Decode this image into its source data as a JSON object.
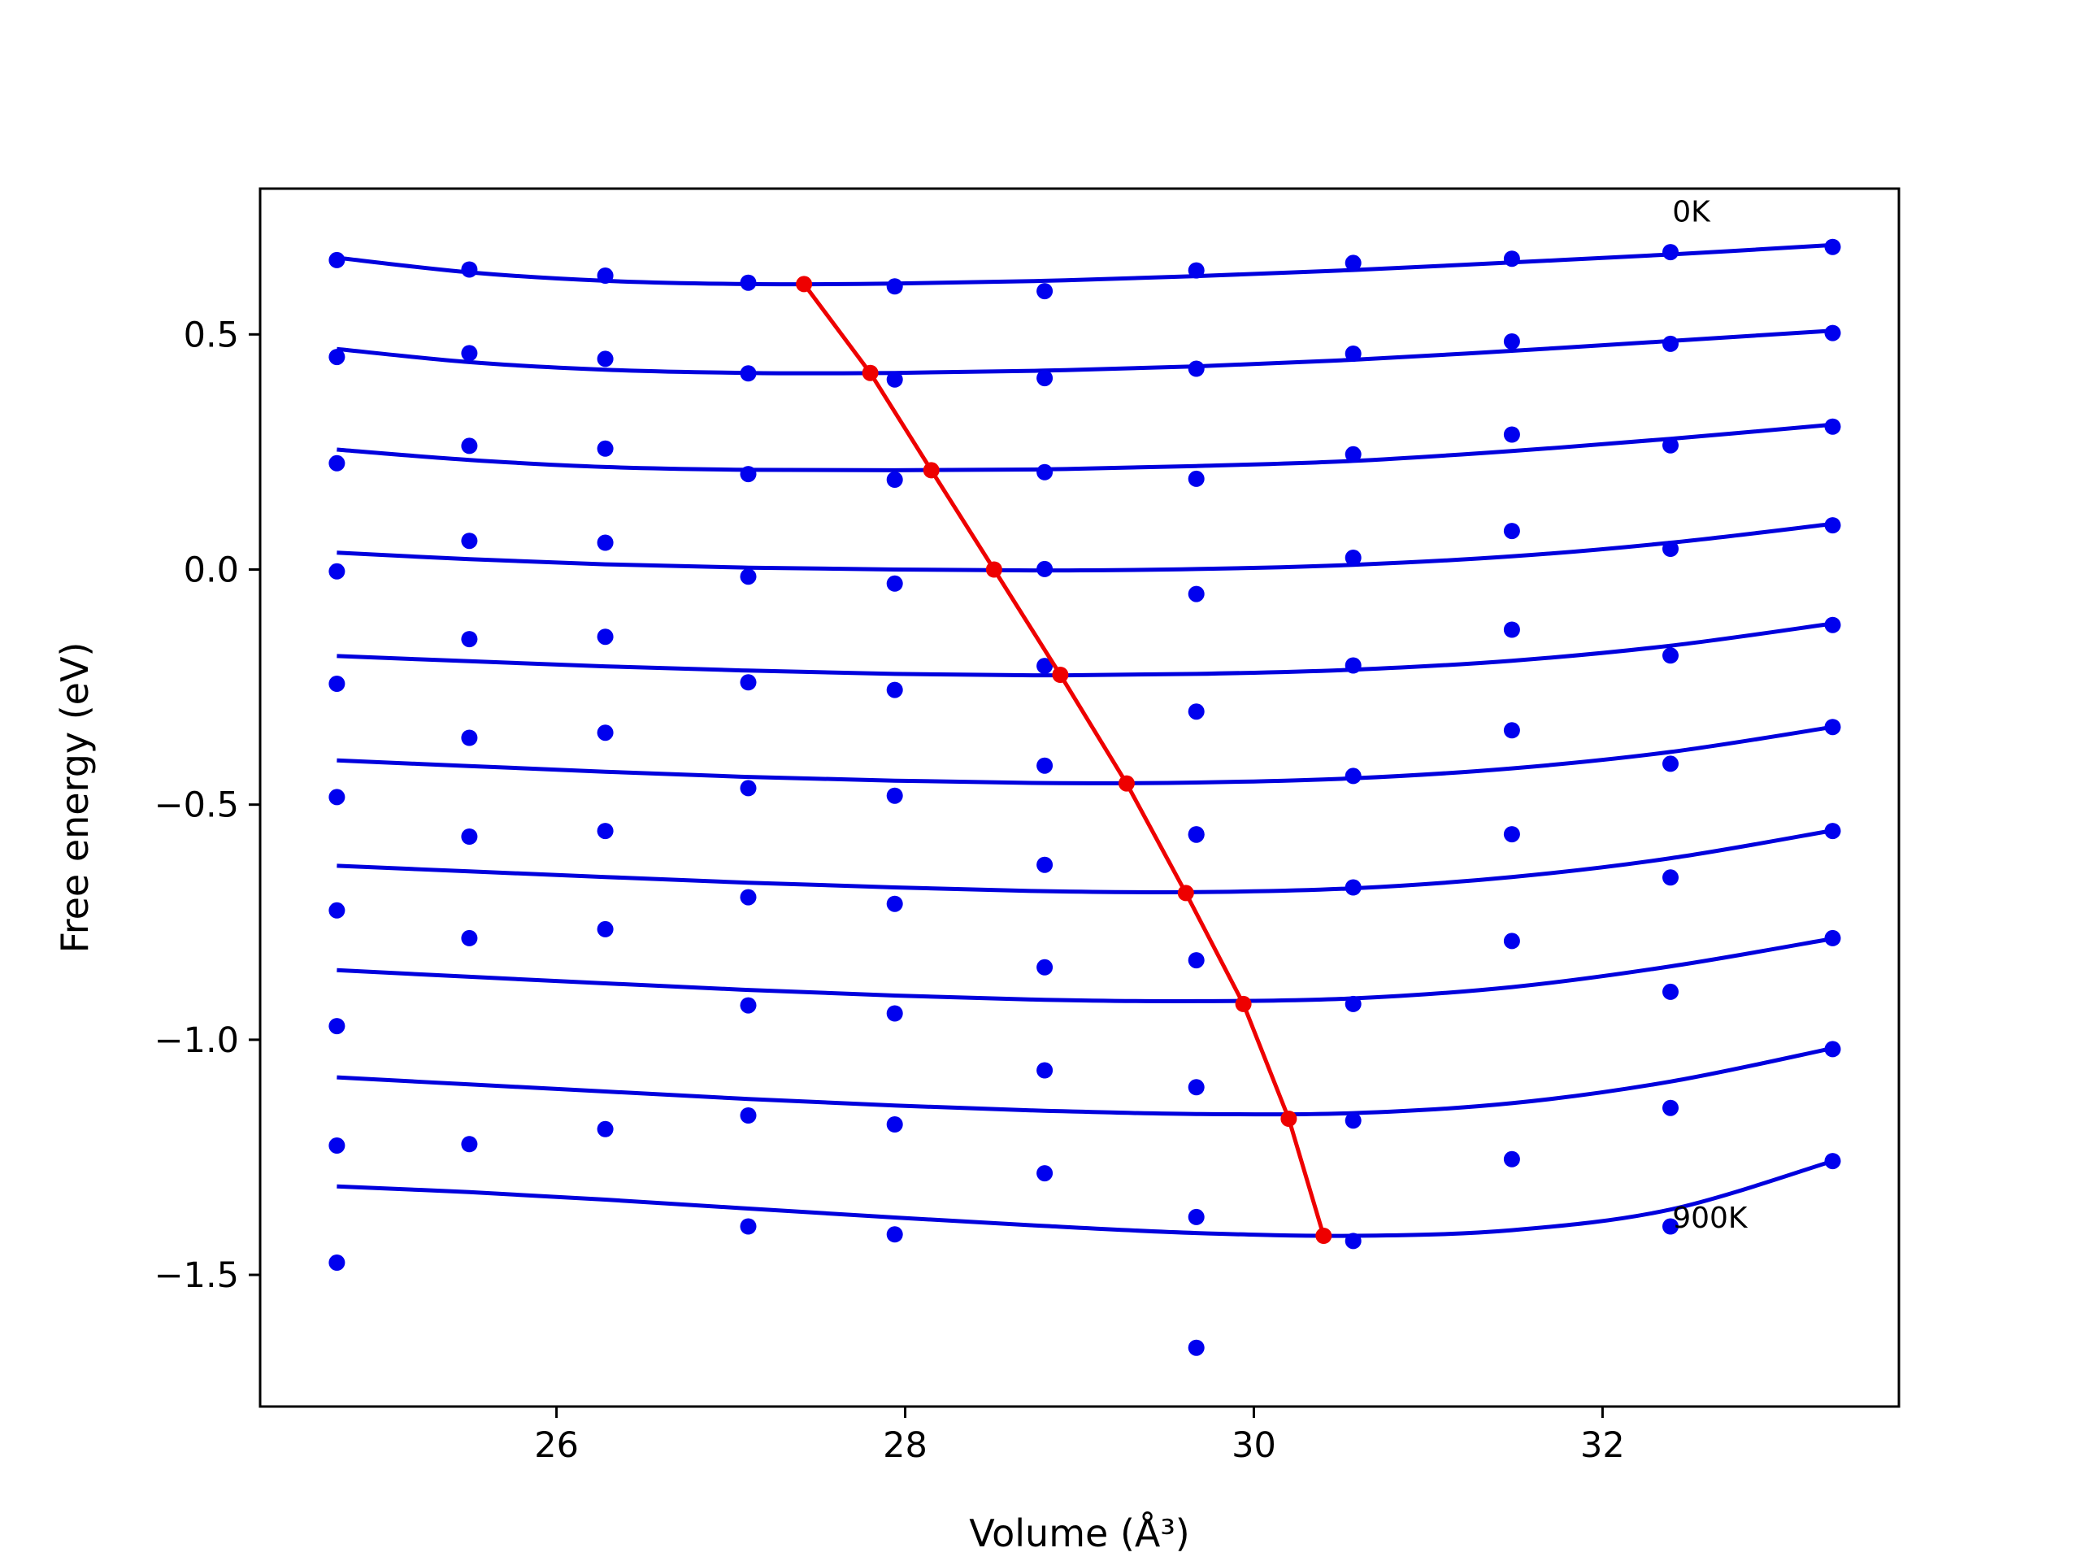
{
  "chart_data": {
    "type": "scatter",
    "xlabel": "Volume (Å³)",
    "ylabel": "Free energy (eV)",
    "xlim": [
      24.3,
      33.7
    ],
    "ylim": [
      -1.78,
      0.81
    ],
    "xticks": [
      26,
      28,
      30,
      32
    ],
    "yticks": [
      0.5,
      0.0,
      -0.5,
      -1.0,
      -1.5
    ],
    "xtick_labels": [
      "26",
      "28",
      "30",
      "32"
    ],
    "ytick_labels": [
      "0.5",
      "0.0",
      "−0.5",
      "−1.0",
      "−1.5"
    ],
    "annotations": [
      {
        "text": "0K",
        "x": 32.4,
        "y": 0.74
      },
      {
        "text": "900K",
        "x": 32.4,
        "y": -1.4
      }
    ],
    "grid": false,
    "colors": {
      "points": "#0000ee",
      "fit": "#0000dd",
      "minimum": "#ee0000"
    },
    "x": [
      24.74,
      25.5,
      26.28,
      27.1,
      27.94,
      28.8,
      29.67,
      30.57,
      31.48,
      32.39,
      33.32
    ],
    "series": [
      {
        "points": [
          0.658,
          0.638,
          0.625,
          0.61,
          0.602,
          0.592,
          0.636,
          0.652,
          0.661,
          0.675,
          0.686
        ],
        "fit": [
          0.663,
          0.632,
          0.614,
          0.607,
          0.608,
          0.614,
          0.624,
          0.637,
          0.653,
          0.67,
          0.69
        ]
      },
      {
        "points": [
          0.452,
          0.46,
          0.448,
          0.417,
          0.404,
          0.407,
          0.427,
          0.459,
          0.485,
          0.48,
          0.503
        ],
        "fit": [
          0.469,
          0.441,
          0.425,
          0.418,
          0.418,
          0.423,
          0.432,
          0.446,
          0.465,
          0.486,
          0.508
        ]
      },
      {
        "points": [
          0.226,
          0.263,
          0.257,
          0.203,
          0.191,
          0.207,
          0.193,
          0.245,
          0.287,
          0.264,
          0.304
        ],
        "fit": [
          0.255,
          0.233,
          0.218,
          0.212,
          0.211,
          0.213,
          0.22,
          0.231,
          0.252,
          0.278,
          0.308
        ]
      },
      {
        "points": [
          -0.004,
          0.061,
          0.057,
          -0.015,
          -0.03,
          0.001,
          -0.052,
          0.025,
          0.082,
          0.044,
          0.094
        ],
        "fit": [
          0.036,
          0.022,
          0.011,
          0.004,
          0.0,
          -0.002,
          0.001,
          0.01,
          0.028,
          0.057,
          0.097
        ]
      },
      {
        "points": [
          -0.243,
          -0.148,
          -0.143,
          -0.24,
          -0.256,
          -0.205,
          -0.302,
          -0.204,
          -0.128,
          -0.183,
          -0.118
        ],
        "fit": [
          -0.184,
          -0.195,
          -0.206,
          -0.215,
          -0.222,
          -0.225,
          -0.222,
          -0.213,
          -0.194,
          -0.162,
          -0.115
        ]
      },
      {
        "points": [
          -0.484,
          -0.358,
          -0.347,
          -0.465,
          -0.481,
          -0.417,
          -0.563,
          -0.439,
          -0.342,
          -0.413,
          -0.335
        ],
        "fit": [
          -0.406,
          -0.418,
          -0.43,
          -0.441,
          -0.449,
          -0.454,
          -0.453,
          -0.444,
          -0.423,
          -0.388,
          -0.335
        ]
      },
      {
        "points": [
          -0.725,
          -0.568,
          -0.556,
          -0.697,
          -0.711,
          -0.628,
          -0.564,
          -0.676,
          -0.563,
          -0.655,
          -0.556
        ],
        "fit": [
          -0.63,
          -0.642,
          -0.654,
          -0.666,
          -0.676,
          -0.684,
          -0.686,
          -0.678,
          -0.654,
          -0.614,
          -0.555
        ]
      },
      {
        "points": [
          -0.971,
          -0.784,
          -0.765,
          -0.927,
          -0.944,
          -0.846,
          -0.831,
          -0.924,
          -0.79,
          -0.898,
          -0.784
        ],
        "fit": [
          -0.852,
          -0.866,
          -0.88,
          -0.894,
          -0.906,
          -0.915,
          -0.918,
          -0.912,
          -0.888,
          -0.844,
          -0.785
        ]
      },
      {
        "points": [
          -1.225,
          -1.222,
          -1.19,
          -1.161,
          -1.18,
          -1.065,
          -1.101,
          -1.172,
          -1.254,
          -1.145,
          -1.02
        ],
        "fit": [
          -1.08,
          -1.095,
          -1.11,
          -1.126,
          -1.14,
          -1.151,
          -1.158,
          -1.156,
          -1.135,
          -1.089,
          -1.018
        ]
      },
      {
        "points": [
          -1.474,
          null,
          null,
          -1.397,
          -1.414,
          -1.284,
          -1.377,
          -1.428,
          null,
          -1.397,
          -1.258
        ],
        "extra_points": [
          {
            "x": 29.67,
            "y": -1.655
          }
        ],
        "fit": [
          -1.312,
          -1.324,
          -1.34,
          -1.359,
          -1.378,
          -1.396,
          -1.411,
          -1.417,
          -1.405,
          -1.361,
          -1.258
        ]
      }
    ],
    "minimum_line": {
      "x": [
        27.42,
        27.8,
        28.15,
        28.51,
        28.89,
        29.27,
        29.61,
        29.94,
        30.2,
        30.4
      ],
      "y": [
        0.607,
        0.418,
        0.211,
        0.0,
        -0.224,
        -0.455,
        -0.688,
        -0.924,
        -1.168,
        -1.417
      ]
    }
  }
}
